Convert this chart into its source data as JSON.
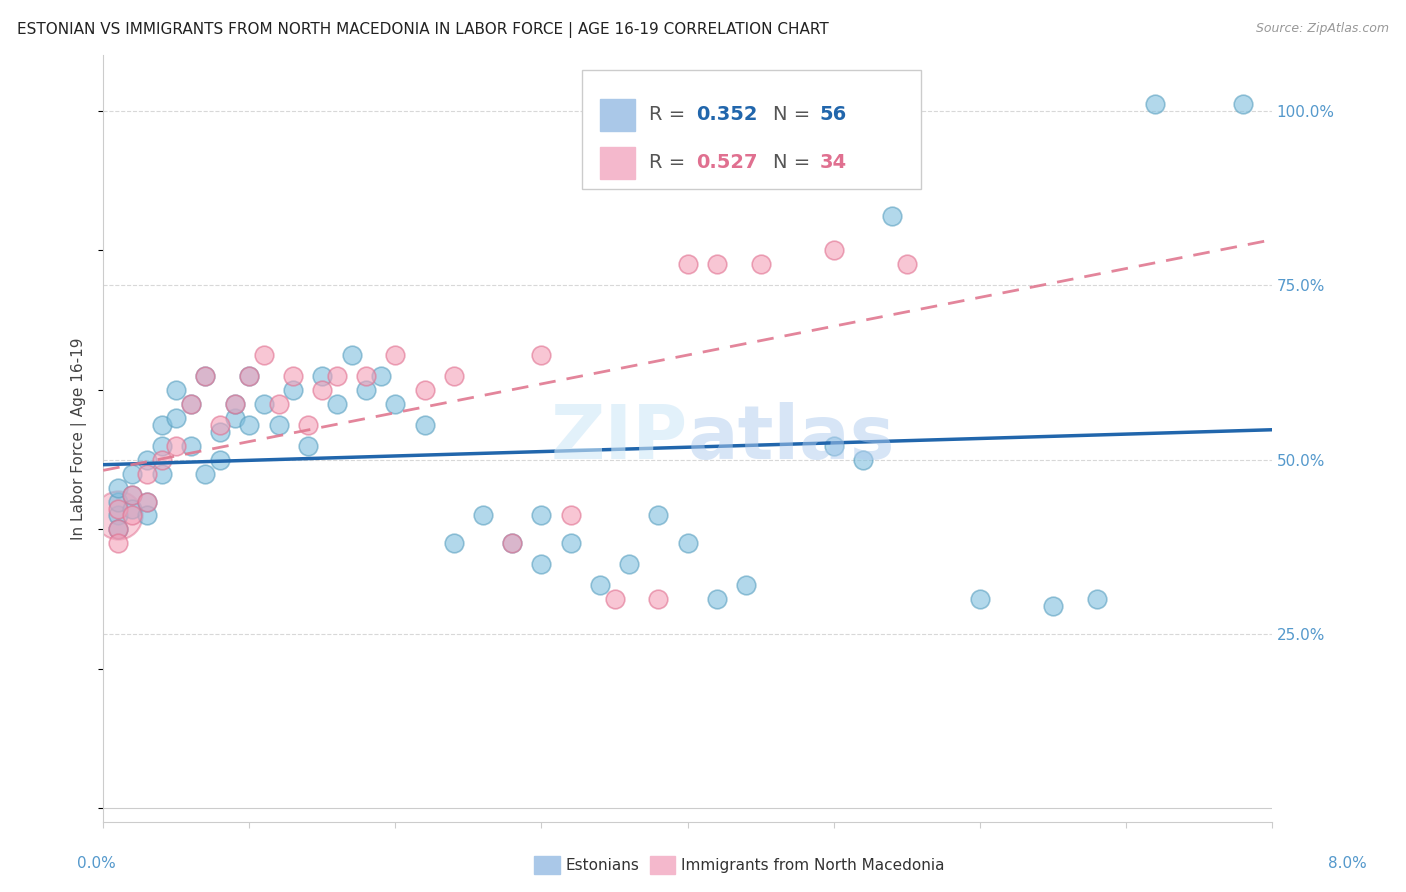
{
  "title": "ESTONIAN VS IMMIGRANTS FROM NORTH MACEDONIA IN LABOR FORCE | AGE 16-19 CORRELATION CHART",
  "source": "Source: ZipAtlas.com",
  "ylabel": "In Labor Force | Age 16-19",
  "ytick_labels": [
    "25.0%",
    "50.0%",
    "75.0%",
    "100.0%"
  ],
  "ytick_values": [
    0.25,
    0.5,
    0.75,
    1.0
  ],
  "R_blue": 0.352,
  "N_blue": 56,
  "R_pink": 0.527,
  "N_pink": 34,
  "blue_color": "#7fbfdf",
  "blue_edge": "#5aa0c0",
  "pink_color": "#f4a0b8",
  "pink_edge": "#e07090",
  "blue_line_color": "#2166ac",
  "pink_line_color": "#e07890",
  "blue_legend_fill": "#aac8e8",
  "pink_legend_fill": "#f4b8cc",
  "xmin": 0.0,
  "xmax": 0.08,
  "ymin": 0.0,
  "ymax": 1.08,
  "ytick_label_color": "#5599cc",
  "xtick_label_color": "#5599cc",
  "grid_color": "#d8d8d8",
  "watermark_text": "ZIPatlas",
  "watermark_color": "#c0d8f0",
  "title_fontsize": 11,
  "source_fontsize": 9,
  "axis_label_fontsize": 11,
  "tick_label_fontsize": 11,
  "legend_fontsize": 14,
  "bottom_legend_labels": [
    "Estonians",
    "Immigrants from North Macedonia"
  ],
  "background": "#ffffff",
  "blue_x": [
    0.001,
    0.001,
    0.001,
    0.001,
    0.002,
    0.002,
    0.002,
    0.003,
    0.003,
    0.003,
    0.004,
    0.004,
    0.004,
    0.005,
    0.005,
    0.006,
    0.006,
    0.007,
    0.007,
    0.008,
    0.008,
    0.009,
    0.009,
    0.01,
    0.01,
    0.011,
    0.012,
    0.013,
    0.014,
    0.015,
    0.016,
    0.017,
    0.018,
    0.019,
    0.02,
    0.022,
    0.024,
    0.026,
    0.028,
    0.03,
    0.03,
    0.032,
    0.034,
    0.036,
    0.038,
    0.04,
    0.042,
    0.044,
    0.05,
    0.052,
    0.054,
    0.06,
    0.065,
    0.068,
    0.072,
    0.078
  ],
  "blue_y": [
    0.42,
    0.44,
    0.46,
    0.4,
    0.48,
    0.45,
    0.43,
    0.5,
    0.44,
    0.42,
    0.52,
    0.48,
    0.55,
    0.6,
    0.56,
    0.58,
    0.52,
    0.62,
    0.48,
    0.54,
    0.5,
    0.56,
    0.58,
    0.62,
    0.55,
    0.58,
    0.55,
    0.6,
    0.52,
    0.62,
    0.58,
    0.65,
    0.6,
    0.62,
    0.58,
    0.55,
    0.38,
    0.42,
    0.38,
    0.42,
    0.35,
    0.38,
    0.32,
    0.35,
    0.42,
    0.38,
    0.3,
    0.32,
    0.52,
    0.5,
    0.85,
    0.3,
    0.29,
    0.3,
    1.01,
    1.01
  ],
  "pink_x": [
    0.001,
    0.001,
    0.001,
    0.002,
    0.002,
    0.003,
    0.003,
    0.004,
    0.005,
    0.006,
    0.007,
    0.008,
    0.009,
    0.01,
    0.011,
    0.012,
    0.013,
    0.014,
    0.015,
    0.016,
    0.018,
    0.02,
    0.022,
    0.024,
    0.028,
    0.03,
    0.032,
    0.035,
    0.038,
    0.04,
    0.042,
    0.045,
    0.05,
    0.055
  ],
  "pink_y": [
    0.4,
    0.43,
    0.38,
    0.45,
    0.42,
    0.48,
    0.44,
    0.5,
    0.52,
    0.58,
    0.62,
    0.55,
    0.58,
    0.62,
    0.65,
    0.58,
    0.62,
    0.55,
    0.6,
    0.62,
    0.62,
    0.65,
    0.6,
    0.62,
    0.38,
    0.65,
    0.42,
    0.3,
    0.3,
    0.78,
    0.78,
    0.78,
    0.8,
    0.78
  ]
}
